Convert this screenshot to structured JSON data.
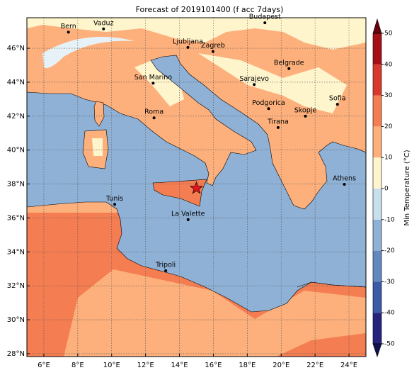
{
  "title": "Forecast of 2019101400 (f acc 7days)",
  "map": {
    "xlim": [
      5,
      25
    ],
    "ylim": [
      27.83,
      47.8
    ],
    "grid": true,
    "xticks": [
      {
        "value": 6,
        "label": "6°E"
      },
      {
        "value": 8,
        "label": "8°E"
      },
      {
        "value": 10,
        "label": "10°E"
      },
      {
        "value": 12,
        "label": "12°E"
      },
      {
        "value": 14,
        "label": "14°E"
      },
      {
        "value": 16,
        "label": "16°E"
      },
      {
        "value": 18,
        "label": "18°E"
      },
      {
        "value": 20,
        "label": "20°E"
      },
      {
        "value": 22,
        "label": "22°E"
      },
      {
        "value": 24,
        "label": "24°E"
      }
    ],
    "yticks": [
      {
        "value": 28,
        "label": "28°N"
      },
      {
        "value": 30,
        "label": "30°N"
      },
      {
        "value": 32,
        "label": "32°N"
      },
      {
        "value": 34,
        "label": "34°N"
      },
      {
        "value": 36,
        "label": "36°N"
      },
      {
        "value": 38,
        "label": "38°N"
      },
      {
        "value": 40,
        "label": "40°N"
      },
      {
        "value": 42,
        "label": "42°N"
      },
      {
        "value": 44,
        "label": "44°N"
      },
      {
        "value": 46,
        "label": "46°N"
      }
    ]
  },
  "cities": [
    {
      "label": "Bern",
      "lon": 7.45,
      "lat": 46.95
    },
    {
      "label": "Vaduz",
      "lon": 9.52,
      "lat": 47.14
    },
    {
      "label": "Ljubljana",
      "lon": 14.5,
      "lat": 46.05
    },
    {
      "label": "Zagreb",
      "lon": 15.98,
      "lat": 45.81
    },
    {
      "label": "Budapest",
      "lon": 19.04,
      "lat": 47.5
    },
    {
      "label": "Belgrade",
      "lon": 20.46,
      "lat": 44.8
    },
    {
      "label": "San Marino",
      "lon": 12.45,
      "lat": 43.94
    },
    {
      "label": "Sarajevo",
      "lon": 18.41,
      "lat": 43.86
    },
    {
      "label": "Sofia",
      "lon": 23.32,
      "lat": 42.7
    },
    {
      "label": "Podgorica",
      "lon": 19.26,
      "lat": 42.44
    },
    {
      "label": "Skopje",
      "lon": 21.43,
      "lat": 42.0
    },
    {
      "label": "Roma",
      "lon": 12.5,
      "lat": 41.9
    },
    {
      "label": "Tirana",
      "lon": 19.82,
      "lat": 41.33
    },
    {
      "label": "Athens",
      "lon": 23.73,
      "lat": 37.98
    },
    {
      "label": "Tunis",
      "lon": 10.18,
      "lat": 36.8
    },
    {
      "label": "La Valette",
      "lon": 14.51,
      "lat": 35.9
    },
    {
      "label": "Tripoli",
      "lon": 13.19,
      "lat": 32.89
    }
  ],
  "marker": {
    "lon": 15.0,
    "lat": 37.75,
    "color": "#e8141c"
  },
  "colorbar": {
    "label": "Min Temperature (°C)",
    "lim": [
      -50,
      50
    ],
    "ticks": [
      -50,
      -40,
      -30,
      -20,
      -10,
      0,
      10,
      20,
      30,
      40,
      50
    ],
    "colors": [
      "#24247e",
      "#3b5ba8",
      "#6289bf",
      "#8fb1d6",
      "#c8dfec",
      "#fff5cc",
      "#fdb07c",
      "#f47d52",
      "#d9392c",
      "#a50f15"
    ],
    "under_color": "#121250",
    "over_color": "#67000d"
  }
}
